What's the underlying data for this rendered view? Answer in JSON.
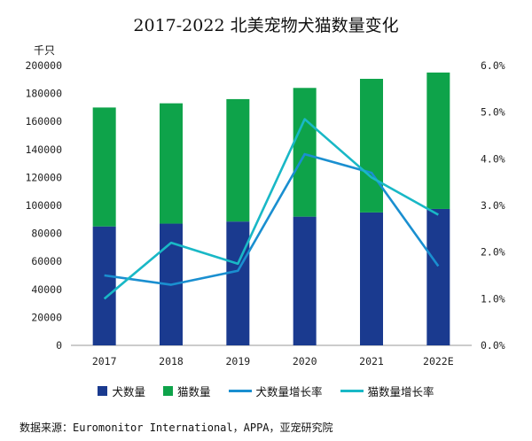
{
  "colors": {
    "dog_bar": "#1a3a8f",
    "cat_bar": "#0ea34a",
    "dog_line": "#1a8fd0",
    "cat_line": "#19b8c6",
    "axis": "#999999"
  },
  "source": "数据来源：Euromonitor International，APPA，亚宠研究院",
  "chart_data": {
    "type": "bar",
    "title": "2017-2022 北美宠物犬猫数量变化",
    "ylabel": "千只",
    "stacked": true,
    "categories": [
      "2017",
      "2018",
      "2019",
      "2020",
      "2021",
      "2022E"
    ],
    "ylim": [
      0,
      200000
    ],
    "y_ticks": [
      "0",
      "20000",
      "40000",
      "60000",
      "80000",
      "100000",
      "120000",
      "140000",
      "160000",
      "180000",
      "200000"
    ],
    "y2lim": [
      0,
      6.0
    ],
    "y2_ticks": [
      "0.0%",
      "1.0%",
      "2.0%",
      "3.0%",
      "4.0%",
      "5.0%",
      "6.0%"
    ],
    "grid": false,
    "legend_position": "bottom",
    "series": [
      {
        "name": "犬数量",
        "type": "bar",
        "axis": "left",
        "values": [
          85000,
          87000,
          88500,
          92000,
          95000,
          97500
        ]
      },
      {
        "name": "猫数量",
        "type": "bar",
        "axis": "left",
        "values": [
          85000,
          86000,
          87500,
          92000,
          95500,
          97500
        ]
      },
      {
        "name": "犬数量增长率",
        "type": "line",
        "axis": "right",
        "unit": "%",
        "values": [
          1.5,
          1.3,
          1.6,
          4.1,
          3.7,
          1.7
        ]
      },
      {
        "name": "猫数量增长率",
        "type": "line",
        "axis": "right",
        "unit": "%",
        "values": [
          1.0,
          2.2,
          1.75,
          4.85,
          3.6,
          2.8
        ]
      }
    ]
  }
}
